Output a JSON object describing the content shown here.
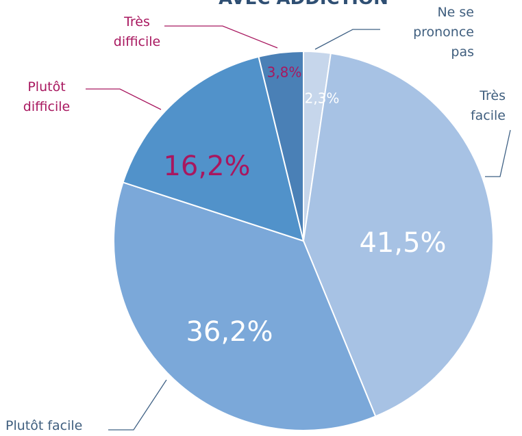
{
  "chart_data": {
    "type": "pie",
    "title": "AVEC ADDICTION",
    "categories": [
      "Ne se prononce pas",
      "Très facile",
      "Plutôt facile",
      "Plutôt difficile",
      "Très difficile"
    ],
    "values": [
      2.3,
      41.5,
      36.2,
      16.2,
      3.8
    ],
    "value_labels": [
      "2,3%",
      "41,5%",
      "36,2%",
      "16,2%",
      "3,8%"
    ],
    "colors": [
      "#c6d6eb",
      "#a7c2e4",
      "#7ba8d9",
      "#5192ca",
      "#4a80b6"
    ]
  }
}
